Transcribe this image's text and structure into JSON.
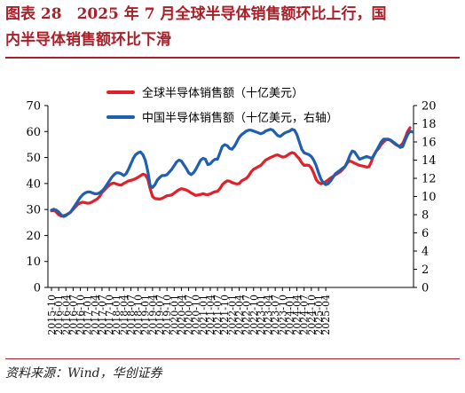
{
  "header": {
    "title_line1": "图表 28　2025 年 7 月全球半导体销售额环比上行，国",
    "title_line2": "内半导体销售额环比下滑"
  },
  "source": "资料来源：Wind，华创证券",
  "colors": {
    "accent": "#a8202a",
    "global": "#e2202a",
    "china": "#1f5fae"
  },
  "chart_data": {
    "type": "line",
    "start": "2015-10",
    "xlabels": [
      "2015-10",
      "2016-01",
      "2016-04",
      "2016-07",
      "2016-10",
      "2017-01",
      "2017-04",
      "2017-07",
      "2017-10",
      "2018-01",
      "2018-04",
      "2018-07",
      "2018-10",
      "2019-01",
      "2019-04",
      "2019-07",
      "2019-10",
      "2020-01",
      "2020-04",
      "2020-07",
      "2020-10",
      "2021-01",
      "2021-04",
      "2021-07",
      "2021-10",
      "2022-01",
      "2022-04",
      "2022-07",
      "2022-10",
      "2023-01",
      "2023-04",
      "2023-07",
      "2023-10",
      "2024-01",
      "2024-04",
      "2024-07",
      "2024-10",
      "2025-01",
      "2025-04"
    ],
    "ylim_left": [
      0,
      70
    ],
    "yticks_left": [
      0,
      10,
      20,
      30,
      40,
      50,
      60,
      70
    ],
    "ylim_right": [
      0,
      20
    ],
    "yticks_right": [
      0,
      2,
      4,
      6,
      8,
      10,
      12,
      14,
      16,
      18,
      20
    ],
    "series": [
      {
        "name": "全球半导体销售额（十亿美元）",
        "axis": "left",
        "color": "#e2202a",
        "values": [
          29.5,
          29.8,
          29.0,
          28.0,
          27.5,
          27.6,
          27.9,
          28.4,
          29.0,
          30.0,
          31.0,
          32.0,
          32.5,
          32.8,
          32.6,
          32.4,
          32.5,
          33.0,
          33.5,
          34.0,
          35.0,
          36.5,
          37.5,
          38.5,
          39.3,
          40.0,
          40.2,
          39.8,
          39.5,
          39.4,
          40.0,
          40.5,
          41.0,
          41.2,
          41.5,
          41.9,
          42.4,
          43.0,
          43.6,
          43.3,
          41.8,
          38.0,
          35.0,
          34.2,
          34.1,
          34.0,
          34.3,
          34.8,
          35.3,
          35.4,
          35.6,
          36.3,
          37.0,
          37.6,
          38.0,
          37.8,
          37.5,
          37.0,
          36.4,
          35.9,
          35.4,
          35.6,
          35.8,
          36.1,
          35.8,
          35.7,
          36.0,
          36.5,
          36.8,
          37.0,
          38.0,
          39.5,
          40.4,
          41.0,
          40.9,
          40.4,
          40.1,
          39.8,
          40.0,
          41.0,
          41.5,
          42.0,
          43.0,
          44.5,
          45.5,
          46.0,
          46.5,
          47.0,
          48.0,
          49.0,
          49.5,
          50.0,
          50.4,
          50.8,
          51.0,
          50.6,
          50.2,
          50.3,
          50.8,
          51.5,
          51.9,
          51.6,
          50.5,
          49.5,
          48.0,
          47.0,
          47.1,
          47.0,
          46.0,
          44.0,
          41.5,
          40.4,
          39.9,
          40.2,
          40.7,
          41.4,
          42.1,
          42.7,
          43.3,
          43.9,
          44.5,
          45.4,
          46.5,
          48.0,
          48.7,
          48.3,
          47.8,
          47.4,
          47.0,
          46.8,
          46.6,
          46.3,
          46.5,
          48.5,
          51.0,
          52.5,
          53.5,
          55.0,
          56.0,
          56.8,
          57.0,
          56.5,
          55.8,
          55.0,
          54.5,
          54.5,
          55.5,
          57.5,
          60.0,
          61.5
        ]
      },
      {
        "name": "中国半导体销售额（十亿美元，右轴）",
        "axis": "right",
        "color": "#1f5fae",
        "values": [
          8.5,
          8.6,
          8.5,
          8.3,
          8.0,
          7.8,
          7.9,
          8.1,
          8.3,
          8.7,
          9.1,
          9.5,
          9.9,
          10.2,
          10.4,
          10.5,
          10.5,
          10.4,
          10.3,
          10.3,
          10.4,
          10.6,
          10.9,
          11.3,
          11.7,
          12.1,
          12.4,
          12.6,
          12.6,
          12.5,
          12.3,
          12.5,
          13.0,
          13.6,
          14.2,
          14.6,
          14.8,
          14.9,
          14.6,
          14.0,
          12.8,
          11.2,
          11.0,
          11.3,
          11.8,
          12.1,
          12.3,
          12.3,
          12.4,
          12.7,
          13.0,
          13.4,
          13.8,
          14.0,
          13.9,
          13.5,
          13.1,
          12.6,
          12.4,
          12.6,
          13.0,
          13.5,
          14.0,
          14.2,
          14.1,
          13.5,
          13.6,
          13.9,
          14.1,
          14.1,
          14.8,
          15.5,
          15.7,
          15.6,
          15.3,
          15.2,
          15.5,
          16.0,
          16.5,
          16.8,
          17.0,
          17.2,
          17.3,
          17.3,
          17.2,
          17.1,
          17.0,
          16.9,
          17.0,
          17.2,
          17.3,
          17.4,
          17.3,
          17.0,
          16.7,
          16.6,
          16.8,
          17.0,
          17.1,
          17.2,
          17.4,
          17.3,
          16.8,
          16.0,
          15.2,
          14.8,
          14.7,
          14.6,
          14.4,
          14.0,
          13.4,
          12.6,
          11.9,
          11.5,
          11.3,
          11.4,
          11.7,
          12.1,
          12.5,
          12.7,
          12.9,
          13.1,
          13.3,
          13.8,
          14.5,
          15.0,
          14.9,
          14.5,
          14.1,
          14.2,
          14.3,
          14.4,
          14.3,
          14.2,
          14.5,
          15.0,
          15.5,
          16.0,
          16.3,
          16.3,
          16.3,
          16.2,
          16.0,
          15.8,
          15.6,
          15.4,
          15.5,
          16.2,
          16.8,
          17.2,
          17.1
        ]
      }
    ]
  }
}
